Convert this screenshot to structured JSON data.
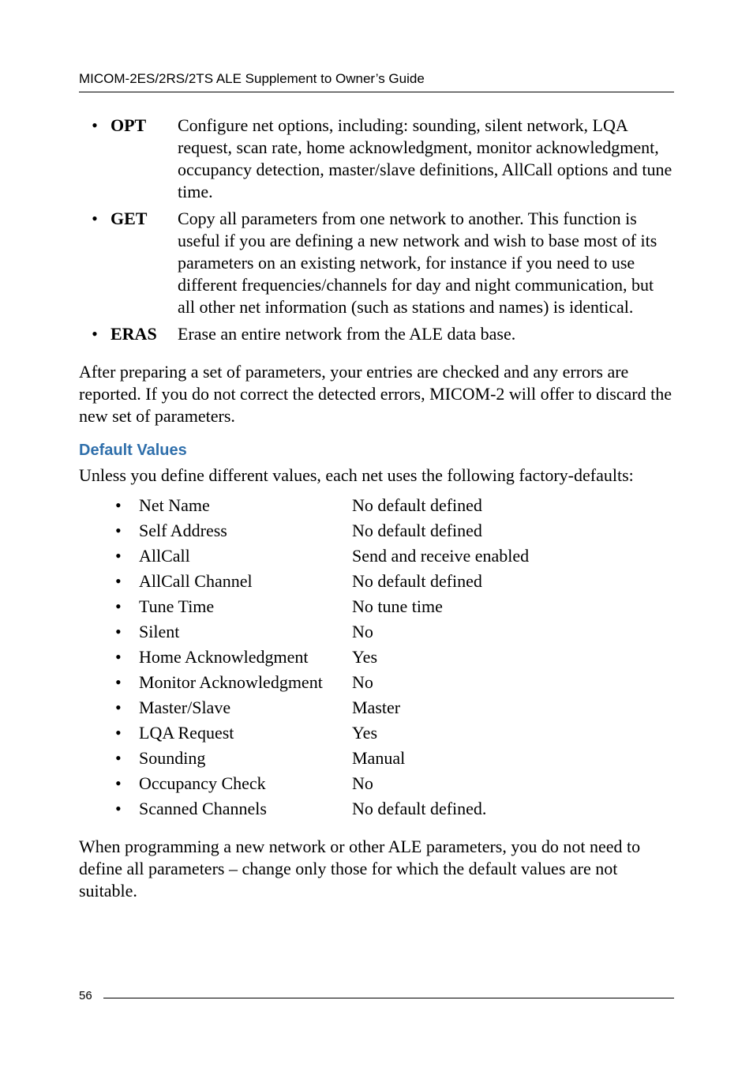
{
  "header": {
    "text": "MICOM-2ES/2RS/2TS ALE Supplement to Owner’s Guide"
  },
  "options": [
    {
      "label": "OPT",
      "desc": "Configure net options, including: sounding, silent network, LQA request, scan rate, home acknowledgment, monitor acknowledgment, occupancy detection, master/slave definitions, AllCall options and tune time."
    },
    {
      "label": "GET",
      "desc": "Copy all parameters from one network to another. This function is useful if you are defining a new network and wish to base most of its parameters on an existing network, for instance if you need to use different frequencies/channels for day and night communication, but all other net information (such as stations and names) is identical."
    },
    {
      "label": "ERAS",
      "desc": "Erase an entire network from the ALE data base."
    }
  ],
  "after_para": "After preparing a set of parameters, your entries are checked and any errors are reported. If you do not correct the detected errors, MICOM-2 will offer to discard the new set of parameters.",
  "defaults_heading": "Default Values",
  "defaults_intro": "Unless you define different values, each net uses the following factory-defaults:",
  "defaults": [
    {
      "name": "Net Name",
      "value": "No default defined"
    },
    {
      "name": "Self Address",
      "value": "No default defined"
    },
    {
      "name": "AllCall",
      "value": "Send and receive enabled"
    },
    {
      "name": "AllCall Channel",
      "value": "No default defined"
    },
    {
      "name": "Tune Time",
      "value": "No tune time"
    },
    {
      "name": "Silent",
      "value": "No"
    },
    {
      "name": "Home Acknowledgment",
      "value": "Yes"
    },
    {
      "name": "Monitor Acknowledgment",
      "value": "No"
    },
    {
      "name": "Master/Slave",
      "value": "Master"
    },
    {
      "name": "LQA Request",
      "value": "Yes"
    },
    {
      "name": "Sounding",
      "value": "Manual"
    },
    {
      "name": "Occupancy Check",
      "value": "No"
    },
    {
      "name": "Scanned Channels",
      "value": "No default defined."
    }
  ],
  "closing_para": "When programming a new network or other ALE parameters, you do not need to define all parameters – change only those for which the default values are not suitable.",
  "page_number": "56",
  "colors": {
    "heading_blue": "#2f6fab",
    "text": "#000000",
    "background": "#ffffff"
  }
}
